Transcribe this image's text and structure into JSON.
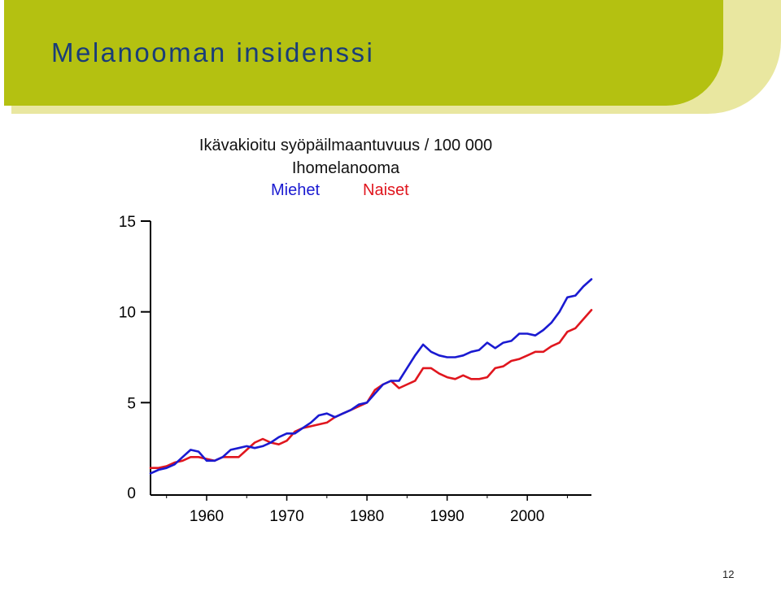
{
  "slide": {
    "title": "Melanooman insidenssi",
    "page_number": "12"
  },
  "colors": {
    "header_bar": "#b4c111",
    "header_band": "#e9e7a0",
    "title_text": "#1a3d78",
    "men": "#1a1ad1",
    "women": "#e0161e"
  },
  "chart_data": {
    "type": "line",
    "title": "Ikävakioitu syöpäilmaantuvuus / 100 000",
    "subtitle": "Ihomelanooma",
    "xlabel": "",
    "ylabel": "",
    "xlim": [
      1953,
      2008
    ],
    "ylim": [
      0,
      15
    ],
    "yticks": [
      0,
      5,
      10,
      15
    ],
    "xticks": [
      1960,
      1970,
      1980,
      1990,
      2000
    ],
    "grid": false,
    "legend_placement": "top-center",
    "x": [
      1953,
      1954,
      1955,
      1956,
      1957,
      1958,
      1959,
      1960,
      1961,
      1962,
      1963,
      1964,
      1965,
      1966,
      1967,
      1968,
      1969,
      1970,
      1971,
      1972,
      1973,
      1974,
      1975,
      1976,
      1977,
      1978,
      1979,
      1980,
      1981,
      1982,
      1983,
      1984,
      1985,
      1986,
      1987,
      1988,
      1989,
      1990,
      1991,
      1992,
      1993,
      1994,
      1995,
      1996,
      1997,
      1998,
      1999,
      2000,
      2001,
      2002,
      2003,
      2004,
      2005,
      2006,
      2007,
      2008
    ],
    "series": [
      {
        "name": "Miehet",
        "color": "#1a1ad1",
        "values": [
          1.1,
          1.3,
          1.4,
          1.6,
          2.0,
          2.4,
          2.3,
          1.8,
          1.8,
          2.0,
          2.4,
          2.5,
          2.6,
          2.5,
          2.6,
          2.8,
          3.1,
          3.3,
          3.3,
          3.6,
          3.9,
          4.3,
          4.4,
          4.2,
          4.4,
          4.6,
          4.9,
          5.0,
          5.5,
          6.0,
          6.2,
          6.2,
          6.9,
          7.6,
          8.2,
          7.8,
          7.6,
          7.5,
          7.5,
          7.6,
          7.8,
          7.9,
          8.3,
          8.0,
          8.3,
          8.4,
          8.8,
          8.8,
          8.7,
          9.0,
          9.4,
          10.0,
          10.8,
          10.9,
          11.4,
          11.8
        ]
      },
      {
        "name": "Naiset",
        "color": "#e0161e",
        "values": [
          1.4,
          1.4,
          1.5,
          1.7,
          1.8,
          2.0,
          2.0,
          1.9,
          1.8,
          2.0,
          2.0,
          2.0,
          2.4,
          2.8,
          3.0,
          2.8,
          2.7,
          2.9,
          3.4,
          3.6,
          3.7,
          3.8,
          3.9,
          4.2,
          4.4,
          4.6,
          4.8,
          5.0,
          5.7,
          6.0,
          6.2,
          5.8,
          6.0,
          6.2,
          6.9,
          6.9,
          6.6,
          6.4,
          6.3,
          6.5,
          6.3,
          6.3,
          6.4,
          6.9,
          7.0,
          7.3,
          7.4,
          7.6,
          7.8,
          7.8,
          8.1,
          8.3,
          8.9,
          9.1,
          9.6,
          10.1
        ]
      }
    ]
  }
}
